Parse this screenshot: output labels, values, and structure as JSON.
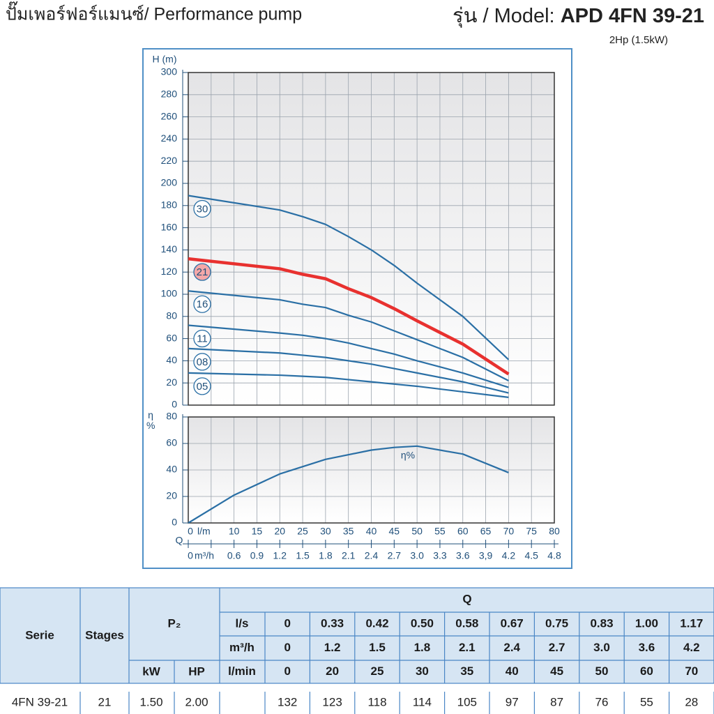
{
  "header": {
    "title": "ปั๊มเพอร์ฟอร์แมนซ์/ Performance pump",
    "model_label": "รุ่น / Model:",
    "model": "APD 4FN 39-21",
    "power": "2Hp (1.5kW)"
  },
  "chart_data": [
    {
      "type": "line",
      "ylabel": "H (m)",
      "xlim": [
        0,
        80
      ],
      "x_grid_step": 5,
      "ylim": [
        0,
        300
      ],
      "yticks": [
        0,
        20,
        40,
        60,
        80,
        100,
        120,
        140,
        160,
        180,
        200,
        220,
        240,
        260,
        280,
        300
      ],
      "grid": true,
      "x": [
        0,
        20,
        25,
        30,
        35,
        40,
        45,
        50,
        60,
        70
      ],
      "series": [
        {
          "name": "30",
          "color": "#2a6fa5",
          "values": [
            189,
            176,
            170,
            163,
            152,
            140,
            126,
            110,
            80,
            41
          ]
        },
        {
          "name": "21",
          "color": "#e8312f",
          "highlight": true,
          "values": [
            132,
            123,
            118,
            114,
            105,
            97,
            87,
            76,
            55,
            28
          ]
        },
        {
          "name": "16",
          "color": "#2a6fa5",
          "values": [
            103,
            95,
            91,
            88,
            81,
            75,
            67,
            59,
            43,
            22
          ]
        },
        {
          "name": "11",
          "color": "#2a6fa5",
          "values": [
            72,
            65,
            63,
            60,
            56,
            51,
            46,
            40,
            29,
            16
          ]
        },
        {
          "name": "08",
          "color": "#2a6fa5",
          "values": [
            51,
            47,
            45,
            43,
            40,
            37,
            33,
            29,
            21,
            11
          ]
        },
        {
          "name": "05",
          "color": "#2a6fa5",
          "values": [
            29,
            27,
            26,
            25,
            23,
            21,
            19,
            17,
            12,
            7
          ]
        }
      ]
    },
    {
      "type": "line",
      "ylabel": "η %",
      "xlim": [
        0,
        80
      ],
      "x_grid_step": 5,
      "ylim": [
        0,
        80
      ],
      "yticks": [
        0,
        20,
        40,
        60,
        80
      ],
      "grid": true,
      "x": [
        0,
        10,
        20,
        30,
        40,
        45,
        50,
        60,
        70
      ],
      "series": [
        {
          "name": "η%",
          "color": "#2a6fa5",
          "values": [
            0,
            21,
            37,
            48,
            55,
            57,
            58,
            52,
            38
          ]
        }
      ],
      "xlabel": "Q",
      "x_unit": "l/m",
      "xticks": [
        0,
        10,
        15,
        20,
        25,
        30,
        35,
        40,
        45,
        50,
        55,
        60,
        65,
        70,
        75,
        80
      ],
      "x2_unit": "m³/h",
      "x2lim": [
        0,
        4.8
      ],
      "x2ticks": [
        0,
        0.6,
        0.9,
        1.2,
        1.5,
        1.8,
        2.1,
        2.4,
        2.7,
        {
          "value": 3,
          "label": "3.0"
        },
        3.3,
        3.6,
        {
          "value": 3.9,
          "label": "3,9"
        },
        4.2,
        4.5,
        4.8
      ]
    }
  ],
  "table": {
    "columns": {
      "serie": "Serie",
      "stages": "Stages",
      "p2": "P₂",
      "q": "Q",
      "kw": "kW",
      "hp": "HP"
    },
    "flow_units": [
      "l/s",
      "m³/h",
      "l/min"
    ],
    "flows": [
      [
        "0",
        "0.33",
        "0.42",
        "0.50",
        "0.58",
        "0.67",
        "0.75",
        "0.83",
        "1.00",
        "1.17"
      ],
      [
        "0",
        "1.2",
        "1.5",
        "1.8",
        "2.1",
        "2.4",
        "2.7",
        "3.0",
        "3.6",
        "4.2"
      ],
      [
        "0",
        "20",
        "25",
        "30",
        "35",
        "40",
        "45",
        "50",
        "60",
        "70"
      ]
    ],
    "rows": [
      [
        "4FN 39-21",
        "21",
        "1.50",
        "2.00",
        "132",
        "123",
        "118",
        "114",
        "105",
        "97",
        "87",
        "76",
        "55",
        "28"
      ]
    ]
  }
}
